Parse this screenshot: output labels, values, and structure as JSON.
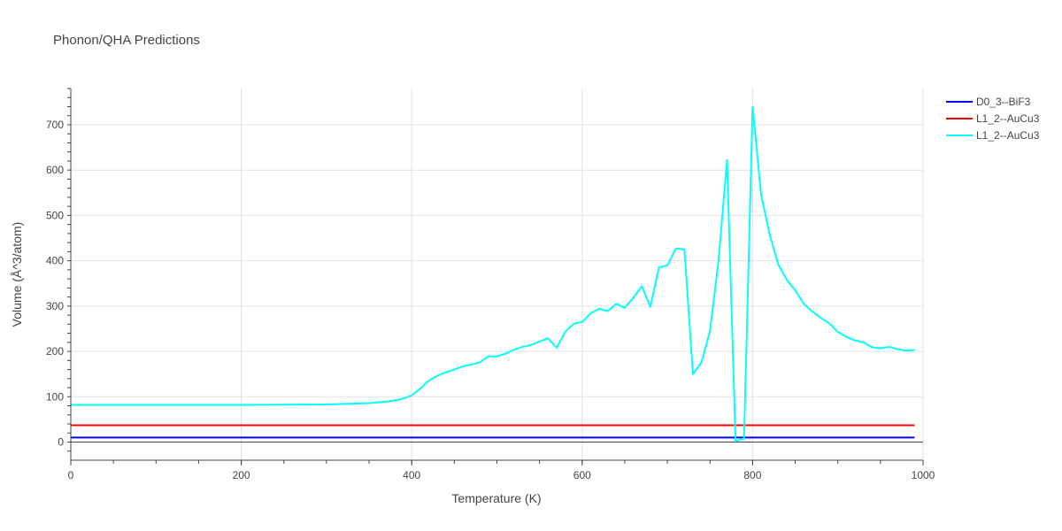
{
  "chart_data": {
    "type": "line",
    "title": "Phonon/QHA Predictions",
    "xlabel": "Temperature (K)",
    "ylabel": "Volume (Å^3/atom)",
    "xlim": [
      0,
      1000
    ],
    "ylim": [
      -40,
      780
    ],
    "x_ticks": [
      0,
      200,
      400,
      600,
      800,
      1000
    ],
    "y_ticks": [
      0,
      100,
      200,
      300,
      400,
      500,
      600,
      700
    ],
    "grid": true,
    "legend_position": "top-right",
    "series": [
      {
        "name": "D0_3--BiF3",
        "color": "#0000ff",
        "x": [
          0,
          990
        ],
        "y": [
          10,
          10
        ]
      },
      {
        "name": "L1_2--AuCu3",
        "color": "#ff0000",
        "x": [
          0,
          990
        ],
        "y": [
          37,
          37
        ]
      },
      {
        "name": "L1_2--AuCu3",
        "color": "#00ffff",
        "x": [
          0,
          100,
          200,
          300,
          350,
          370,
          380,
          390,
          400,
          410,
          420,
          430,
          440,
          450,
          460,
          470,
          480,
          490,
          500,
          510,
          520,
          530,
          540,
          550,
          560,
          570,
          580,
          590,
          600,
          610,
          620,
          630,
          640,
          650,
          660,
          670,
          680,
          690,
          700,
          710,
          720,
          730,
          740,
          750,
          760,
          770,
          780,
          790,
          800,
          810,
          820,
          830,
          840,
          850,
          860,
          870,
          880,
          890,
          900,
          910,
          920,
          930,
          940,
          950,
          960,
          970,
          980,
          990
        ],
        "y": [
          82,
          82,
          82,
          83,
          86,
          89,
          92,
          96,
          103,
          118,
          136,
          146,
          154,
          160,
          167,
          171,
          176,
          189,
          189,
          195,
          204,
          210,
          214,
          222,
          229,
          208,
          243,
          261,
          265,
          284,
          294,
          289,
          305,
          296,
          318,
          344,
          298,
          385,
          390,
          427,
          425,
          150,
          176,
          245,
          400,
          622,
          2,
          8,
          740,
          545,
          458,
          392,
          358,
          335,
          305,
          288,
          274,
          262,
          243,
          232,
          224,
          220,
          209,
          207,
          210,
          205,
          202,
          203
        ]
      }
    ]
  }
}
